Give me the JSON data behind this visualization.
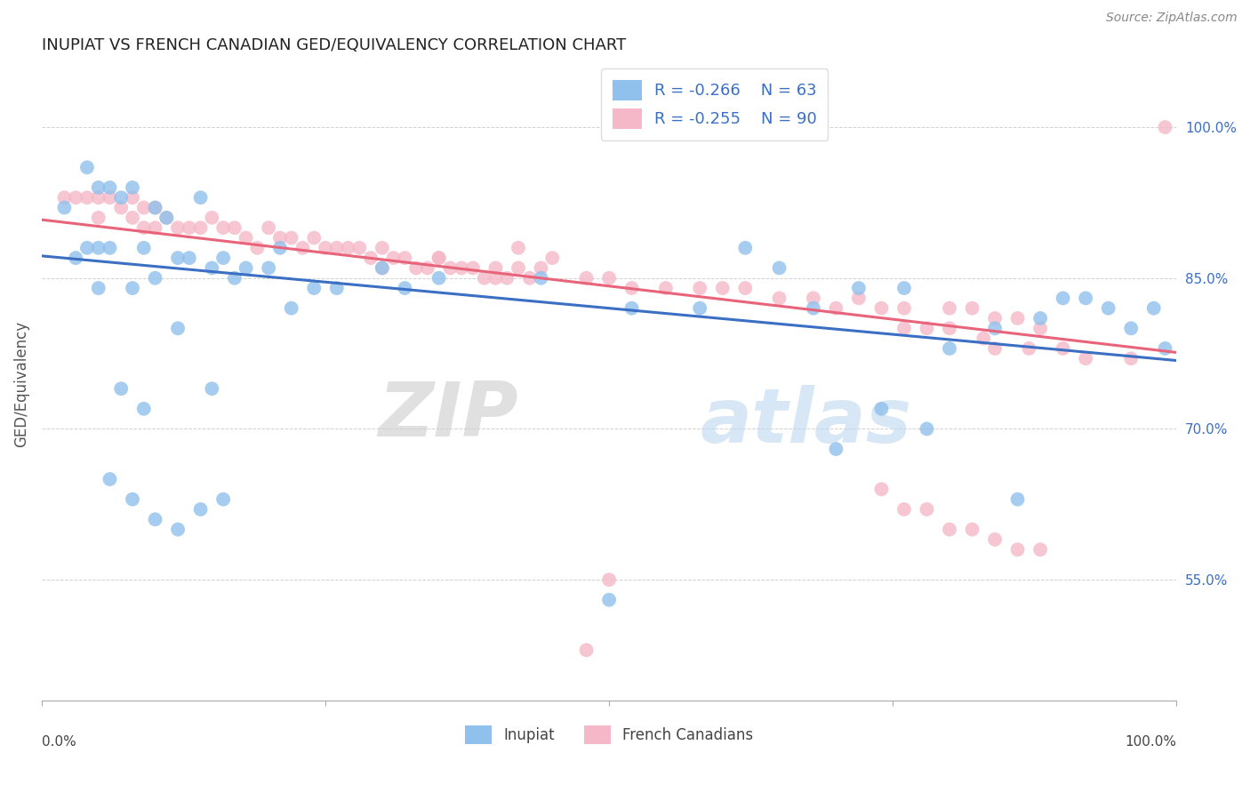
{
  "title": "INUPIAT VS FRENCH CANADIAN GED/EQUIVALENCY CORRELATION CHART",
  "source": "Source: ZipAtlas.com",
  "ylabel": "GED/Equivalency",
  "legend_blue_r": "R = -0.266",
  "legend_blue_n": "N = 63",
  "legend_pink_r": "R = -0.255",
  "legend_pink_n": "N = 90",
  "ytick_labels": [
    "55.0%",
    "70.0%",
    "85.0%",
    "100.0%"
  ],
  "ytick_values": [
    0.55,
    0.7,
    0.85,
    1.0
  ],
  "xlim": [
    0.0,
    1.0
  ],
  "ylim": [
    0.43,
    1.06
  ],
  "blue_color": "#90C0EC",
  "pink_color": "#F5B8C8",
  "blue_line_color": "#3B6FC4",
  "pink_line_color": "#E8647A",
  "watermark_zip": "ZIP",
  "watermark_atlas": "atlas",
  "blue_line_x0": 0.0,
  "blue_line_y0": 0.872,
  "blue_line_x1": 1.0,
  "blue_line_y1": 0.768,
  "pink_line_x0": 0.0,
  "pink_line_y0": 0.908,
  "pink_line_x1": 1.0,
  "pink_line_y1": 0.776,
  "blue_x": [
    0.02,
    0.04,
    0.05,
    0.06,
    0.07,
    0.08,
    0.04,
    0.05,
    0.06,
    0.09,
    0.1,
    0.11,
    0.12,
    0.13,
    0.14,
    0.03,
    0.05,
    0.08,
    0.1,
    0.15,
    0.16,
    0.17,
    0.21,
    0.26,
    0.3,
    0.32,
    0.35,
    0.44,
    0.52,
    0.58,
    0.62,
    0.65,
    0.68,
    0.72,
    0.76,
    0.8,
    0.84,
    0.88,
    0.9,
    0.92,
    0.94,
    0.96,
    0.98,
    0.99,
    0.18,
    0.2,
    0.22,
    0.24,
    0.12,
    0.15,
    0.07,
    0.09,
    0.06,
    0.08,
    0.1,
    0.12,
    0.14,
    0.16,
    0.5,
    0.74,
    0.78,
    0.86,
    0.7
  ],
  "blue_y": [
    0.92,
    0.96,
    0.94,
    0.94,
    0.93,
    0.94,
    0.88,
    0.88,
    0.88,
    0.88,
    0.92,
    0.91,
    0.87,
    0.87,
    0.93,
    0.87,
    0.84,
    0.84,
    0.85,
    0.86,
    0.87,
    0.85,
    0.88,
    0.84,
    0.86,
    0.84,
    0.85,
    0.85,
    0.82,
    0.82,
    0.88,
    0.86,
    0.82,
    0.84,
    0.84,
    0.78,
    0.8,
    0.81,
    0.83,
    0.83,
    0.82,
    0.8,
    0.82,
    0.78,
    0.86,
    0.86,
    0.82,
    0.84,
    0.8,
    0.74,
    0.74,
    0.72,
    0.65,
    0.63,
    0.61,
    0.6,
    0.62,
    0.63,
    0.53,
    0.72,
    0.7,
    0.63,
    0.68
  ],
  "pink_x": [
    0.02,
    0.03,
    0.04,
    0.05,
    0.05,
    0.06,
    0.07,
    0.08,
    0.08,
    0.09,
    0.09,
    0.1,
    0.1,
    0.11,
    0.12,
    0.13,
    0.14,
    0.15,
    0.16,
    0.17,
    0.18,
    0.19,
    0.2,
    0.21,
    0.22,
    0.23,
    0.24,
    0.25,
    0.26,
    0.27,
    0.28,
    0.29,
    0.3,
    0.31,
    0.32,
    0.33,
    0.34,
    0.35,
    0.36,
    0.37,
    0.38,
    0.39,
    0.4,
    0.41,
    0.42,
    0.43,
    0.44,
    0.3,
    0.35,
    0.4,
    0.48,
    0.5,
    0.55,
    0.58,
    0.62,
    0.65,
    0.68,
    0.72,
    0.76,
    0.8,
    0.82,
    0.84,
    0.86,
    0.88,
    0.52,
    0.42,
    0.45,
    0.6,
    0.7,
    0.74,
    0.76,
    0.78,
    0.8,
    0.83,
    0.84,
    0.87,
    0.9,
    0.92,
    0.96,
    0.99,
    0.74,
    0.76,
    0.78,
    0.8,
    0.82,
    0.84,
    0.86,
    0.88,
    0.5,
    0.48
  ],
  "pink_y": [
    0.93,
    0.93,
    0.93,
    0.93,
    0.91,
    0.93,
    0.92,
    0.93,
    0.91,
    0.92,
    0.9,
    0.92,
    0.9,
    0.91,
    0.9,
    0.9,
    0.9,
    0.91,
    0.9,
    0.9,
    0.89,
    0.88,
    0.9,
    0.89,
    0.89,
    0.88,
    0.89,
    0.88,
    0.88,
    0.88,
    0.88,
    0.87,
    0.88,
    0.87,
    0.87,
    0.86,
    0.86,
    0.87,
    0.86,
    0.86,
    0.86,
    0.85,
    0.86,
    0.85,
    0.86,
    0.85,
    0.86,
    0.86,
    0.87,
    0.85,
    0.85,
    0.85,
    0.84,
    0.84,
    0.84,
    0.83,
    0.83,
    0.83,
    0.82,
    0.82,
    0.82,
    0.81,
    0.81,
    0.8,
    0.84,
    0.88,
    0.87,
    0.84,
    0.82,
    0.82,
    0.8,
    0.8,
    0.8,
    0.79,
    0.78,
    0.78,
    0.78,
    0.77,
    0.77,
    1.0,
    0.64,
    0.62,
    0.62,
    0.6,
    0.6,
    0.59,
    0.58,
    0.58,
    0.55,
    0.48
  ]
}
